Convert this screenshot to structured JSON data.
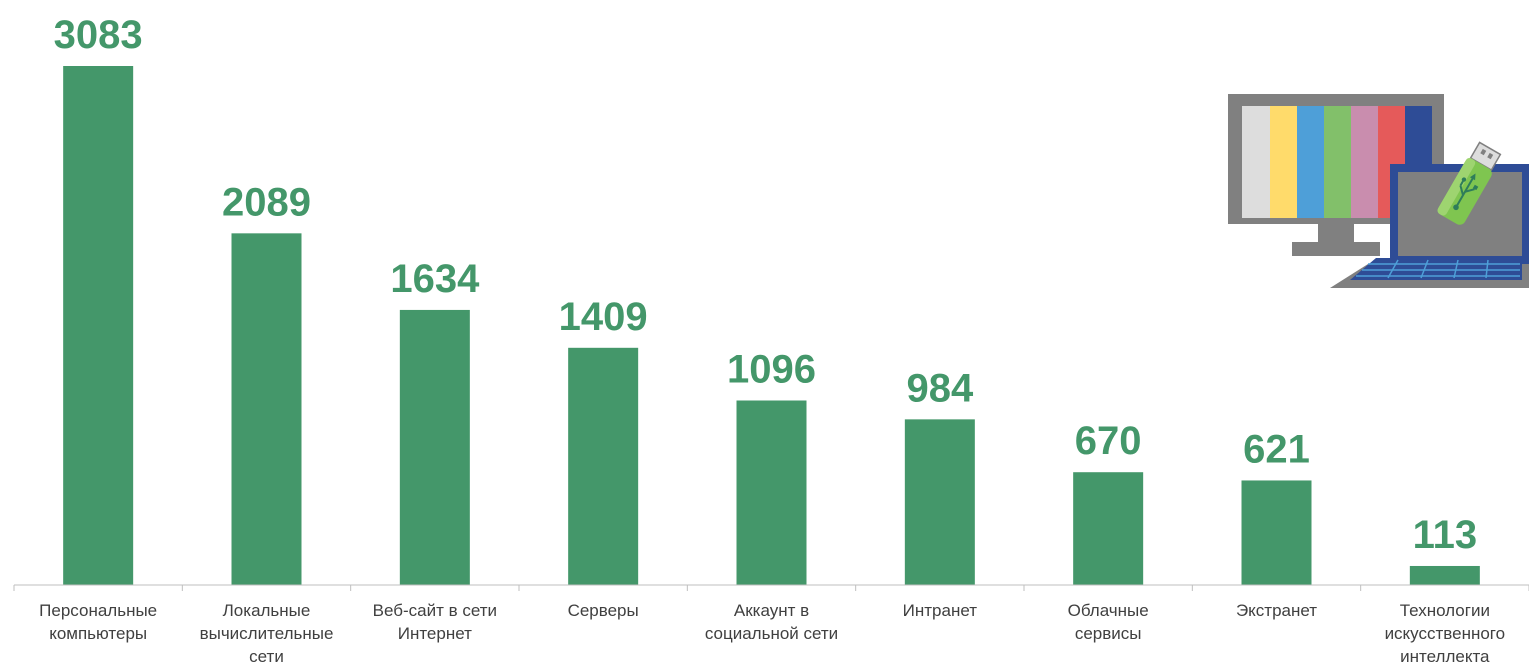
{
  "chart_data": {
    "type": "bar",
    "title": "",
    "xlabel": "",
    "ylabel": "",
    "ylim": [
      0,
      3083
    ],
    "grid": false,
    "legend": "none",
    "bar_color": "#44976A",
    "label_color": "#44976A",
    "categories": [
      [
        "Персональные",
        "компьютеры"
      ],
      [
        "Локальные",
        "вычислительные",
        "сети"
      ],
      [
        "Веб-сайт в сети",
        "Интернет"
      ],
      [
        "Серверы"
      ],
      [
        "Аккаунт в",
        "социальной сети"
      ],
      [
        "Интранет"
      ],
      [
        "Облачные",
        "сервисы"
      ],
      [
        "Экстранет"
      ],
      [
        "Технологии",
        "искусственного",
        "интеллекта"
      ]
    ],
    "values": [
      3083,
      2089,
      1634,
      1409,
      1096,
      984,
      670,
      621,
      113
    ]
  },
  "illustration": {
    "icon": "computer-and-usb-icon",
    "colors": [
      "#808080",
      "#DDDDDD",
      "#FFDB6B",
      "#4E9FD8",
      "#82C06A",
      "#C98DAE",
      "#E55A5A",
      "#2E4C96",
      "#7FC550"
    ]
  }
}
